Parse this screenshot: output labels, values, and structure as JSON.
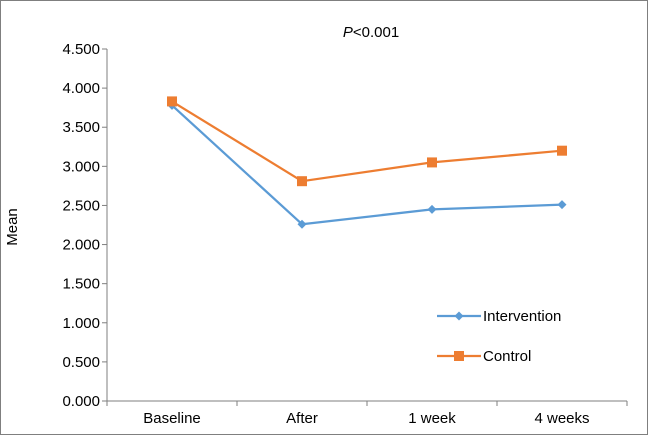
{
  "chart_data": {
    "type": "line",
    "title_prefix": "P",
    "title_suffix": "<0.001",
    "xlabel": "",
    "ylabel": "Mean",
    "categories": [
      "Baseline",
      "After",
      "1 week",
      "4 weeks"
    ],
    "ylim": [
      0,
      4.5
    ],
    "yticks": [
      "0.000",
      "0.500",
      "1.000",
      "1.500",
      "2.000",
      "2.500",
      "3.000",
      "3.500",
      "4.000",
      "4.500"
    ],
    "grid": false,
    "legend_position": "bottom-right",
    "series": [
      {
        "name": "Intervention",
        "values": [
          3.78,
          2.26,
          2.45,
          2.51
        ],
        "color": "#5b9bd5",
        "marker": "diamond"
      },
      {
        "name": "Control",
        "values": [
          3.83,
          2.81,
          3.05,
          3.2
        ],
        "color": "#ed7d31",
        "marker": "square"
      }
    ]
  }
}
